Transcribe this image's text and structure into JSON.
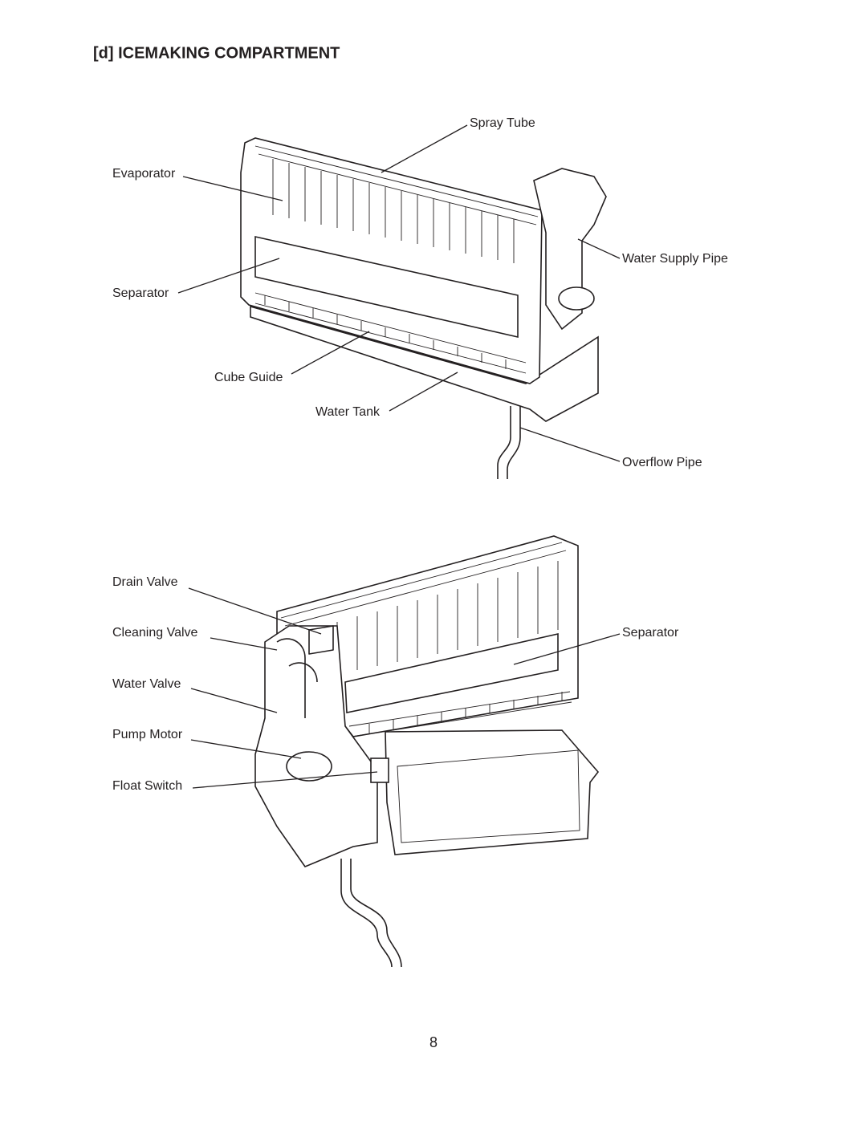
{
  "header": {
    "title": "[d] ICEMAKING COMPARTMENT"
  },
  "figures": [
    {
      "labels": [
        "Spray Tube",
        "Evaporator",
        "Water Supply Pipe",
        "Separator",
        "Cube Guide",
        "Water Tank",
        "Overflow Pipe"
      ]
    },
    {
      "labels": [
        "Drain Valve",
        "Cleaning Valve",
        "Separator",
        "Water Valve",
        "Pump Motor",
        "Float Switch"
      ]
    }
  ],
  "footer": {
    "page_number": "8"
  }
}
